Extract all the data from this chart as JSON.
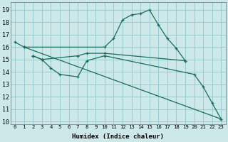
{
  "xlabel": "Humidex (Indice chaleur)",
  "bg_color": "#cce8e8",
  "grid_color": "#99cccc",
  "line_color": "#1a6b5a",
  "xlim": [
    -0.5,
    23.5
  ],
  "ylim": [
    9.8,
    19.6
  ],
  "xticks": [
    0,
    1,
    2,
    3,
    4,
    5,
    6,
    7,
    8,
    9,
    10,
    11,
    12,
    13,
    14,
    15,
    16,
    17,
    18,
    19,
    20,
    21,
    22,
    23
  ],
  "yticks": [
    10,
    11,
    12,
    13,
    14,
    15,
    16,
    17,
    18,
    19
  ],
  "lines": [
    {
      "x": [
        0,
        1,
        10,
        11,
        12,
        13,
        14,
        15,
        16,
        17,
        18,
        19
      ],
      "y": [
        16.4,
        16.0,
        16.0,
        16.7,
        18.2,
        18.6,
        18.7,
        19.0,
        17.8,
        16.7,
        15.9,
        14.9
      ]
    },
    {
      "x": [
        1,
        23
      ],
      "y": [
        16.0,
        10.2
      ]
    },
    {
      "x": [
        2,
        3,
        7,
        8,
        10,
        19
      ],
      "y": [
        15.3,
        15.0,
        15.3,
        15.5,
        15.5,
        14.9
      ]
    },
    {
      "x": [
        2,
        3,
        4,
        5,
        7,
        8,
        10,
        20,
        21,
        22,
        23
      ],
      "y": [
        15.3,
        15.0,
        14.3,
        13.8,
        13.6,
        14.9,
        15.3,
        13.8,
        12.8,
        11.5,
        10.2
      ]
    }
  ]
}
